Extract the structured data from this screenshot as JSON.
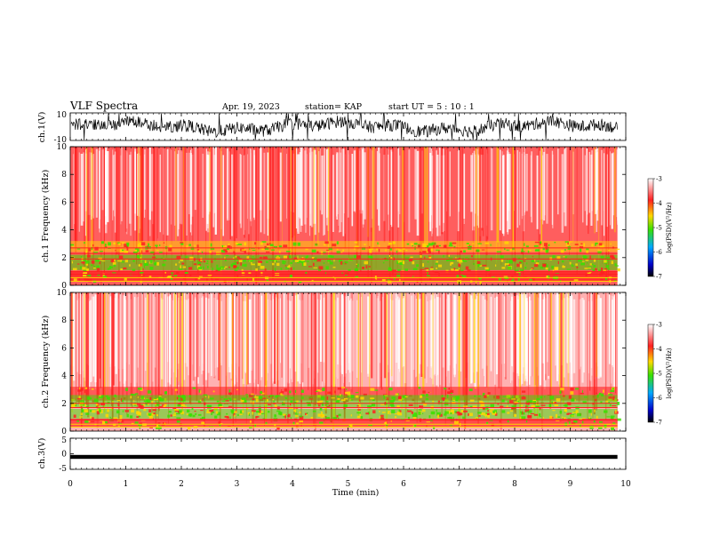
{
  "header": {
    "title": "VLF Spectra",
    "date": "Apr. 19, 2023",
    "station": "station= KAP",
    "start": "start UT = 5 : 10 : 1"
  },
  "colors": {
    "trace": "#000000",
    "spectrogram_low": "#ffffff",
    "spectrogram_mid": "#ff2020",
    "spectrogram_high": "#ffd800",
    "spectrogram_peak": "#38e000"
  },
  "chart_data": [
    {
      "type": "line",
      "panel": "ch1-waveform",
      "ylabel": "ch.1(V)",
      "ylim": [
        -10,
        10
      ],
      "yticks": [
        "10",
        "-10"
      ],
      "xlim": [
        0,
        10
      ],
      "series": [
        {
          "values": [
            0,
            5,
            -4,
            7,
            -8,
            6,
            -3,
            8,
            -9,
            4,
            -2,
            6,
            -7,
            3,
            5,
            -5
          ]
        }
      ]
    },
    {
      "type": "heatmap",
      "panel": "ch1-spectrogram",
      "ylabel": "ch.1 Frequency (kHz)",
      "ylim": [
        0,
        10
      ],
      "yticks": [
        "0",
        "2",
        "4",
        "6",
        "8",
        "10"
      ],
      "xlim": [
        0,
        10
      ],
      "data_end_min": 9.85,
      "colorbar": {
        "label": "log(PSD)(V²/Hz)",
        "range": [
          -7,
          -3
        ],
        "ticks": [
          "-3",
          "-4",
          "-5",
          "-6",
          "-7"
        ]
      }
    },
    {
      "type": "heatmap",
      "panel": "ch2-spectrogram",
      "ylabel": "ch.2 Frequency (kHz)",
      "ylim": [
        0,
        10
      ],
      "yticks": [
        "0",
        "2",
        "4",
        "6",
        "8",
        "10"
      ],
      "xlim": [
        0,
        10
      ],
      "data_end_min": 9.85,
      "colorbar": {
        "label": "log(PSD)(V²/Hz)",
        "range": [
          -7,
          -3
        ],
        "ticks": [
          "-3",
          "-4",
          "-5",
          "-6",
          "-7"
        ]
      }
    },
    {
      "type": "line",
      "panel": "ch3-waveform",
      "ylabel": "ch.3(V)",
      "ylim": [
        -5,
        5
      ],
      "yticks": [
        "5",
        "0",
        "-5"
      ],
      "xlim": [
        0,
        10
      ],
      "xlabel": "Time (min)",
      "xticks": [
        "0",
        "1",
        "2",
        "3",
        "4",
        "5",
        "6",
        "7",
        "8",
        "9",
        "10"
      ],
      "series": [
        {
          "values": [
            -1,
            -1,
            -1,
            -1
          ]
        }
      ]
    }
  ]
}
